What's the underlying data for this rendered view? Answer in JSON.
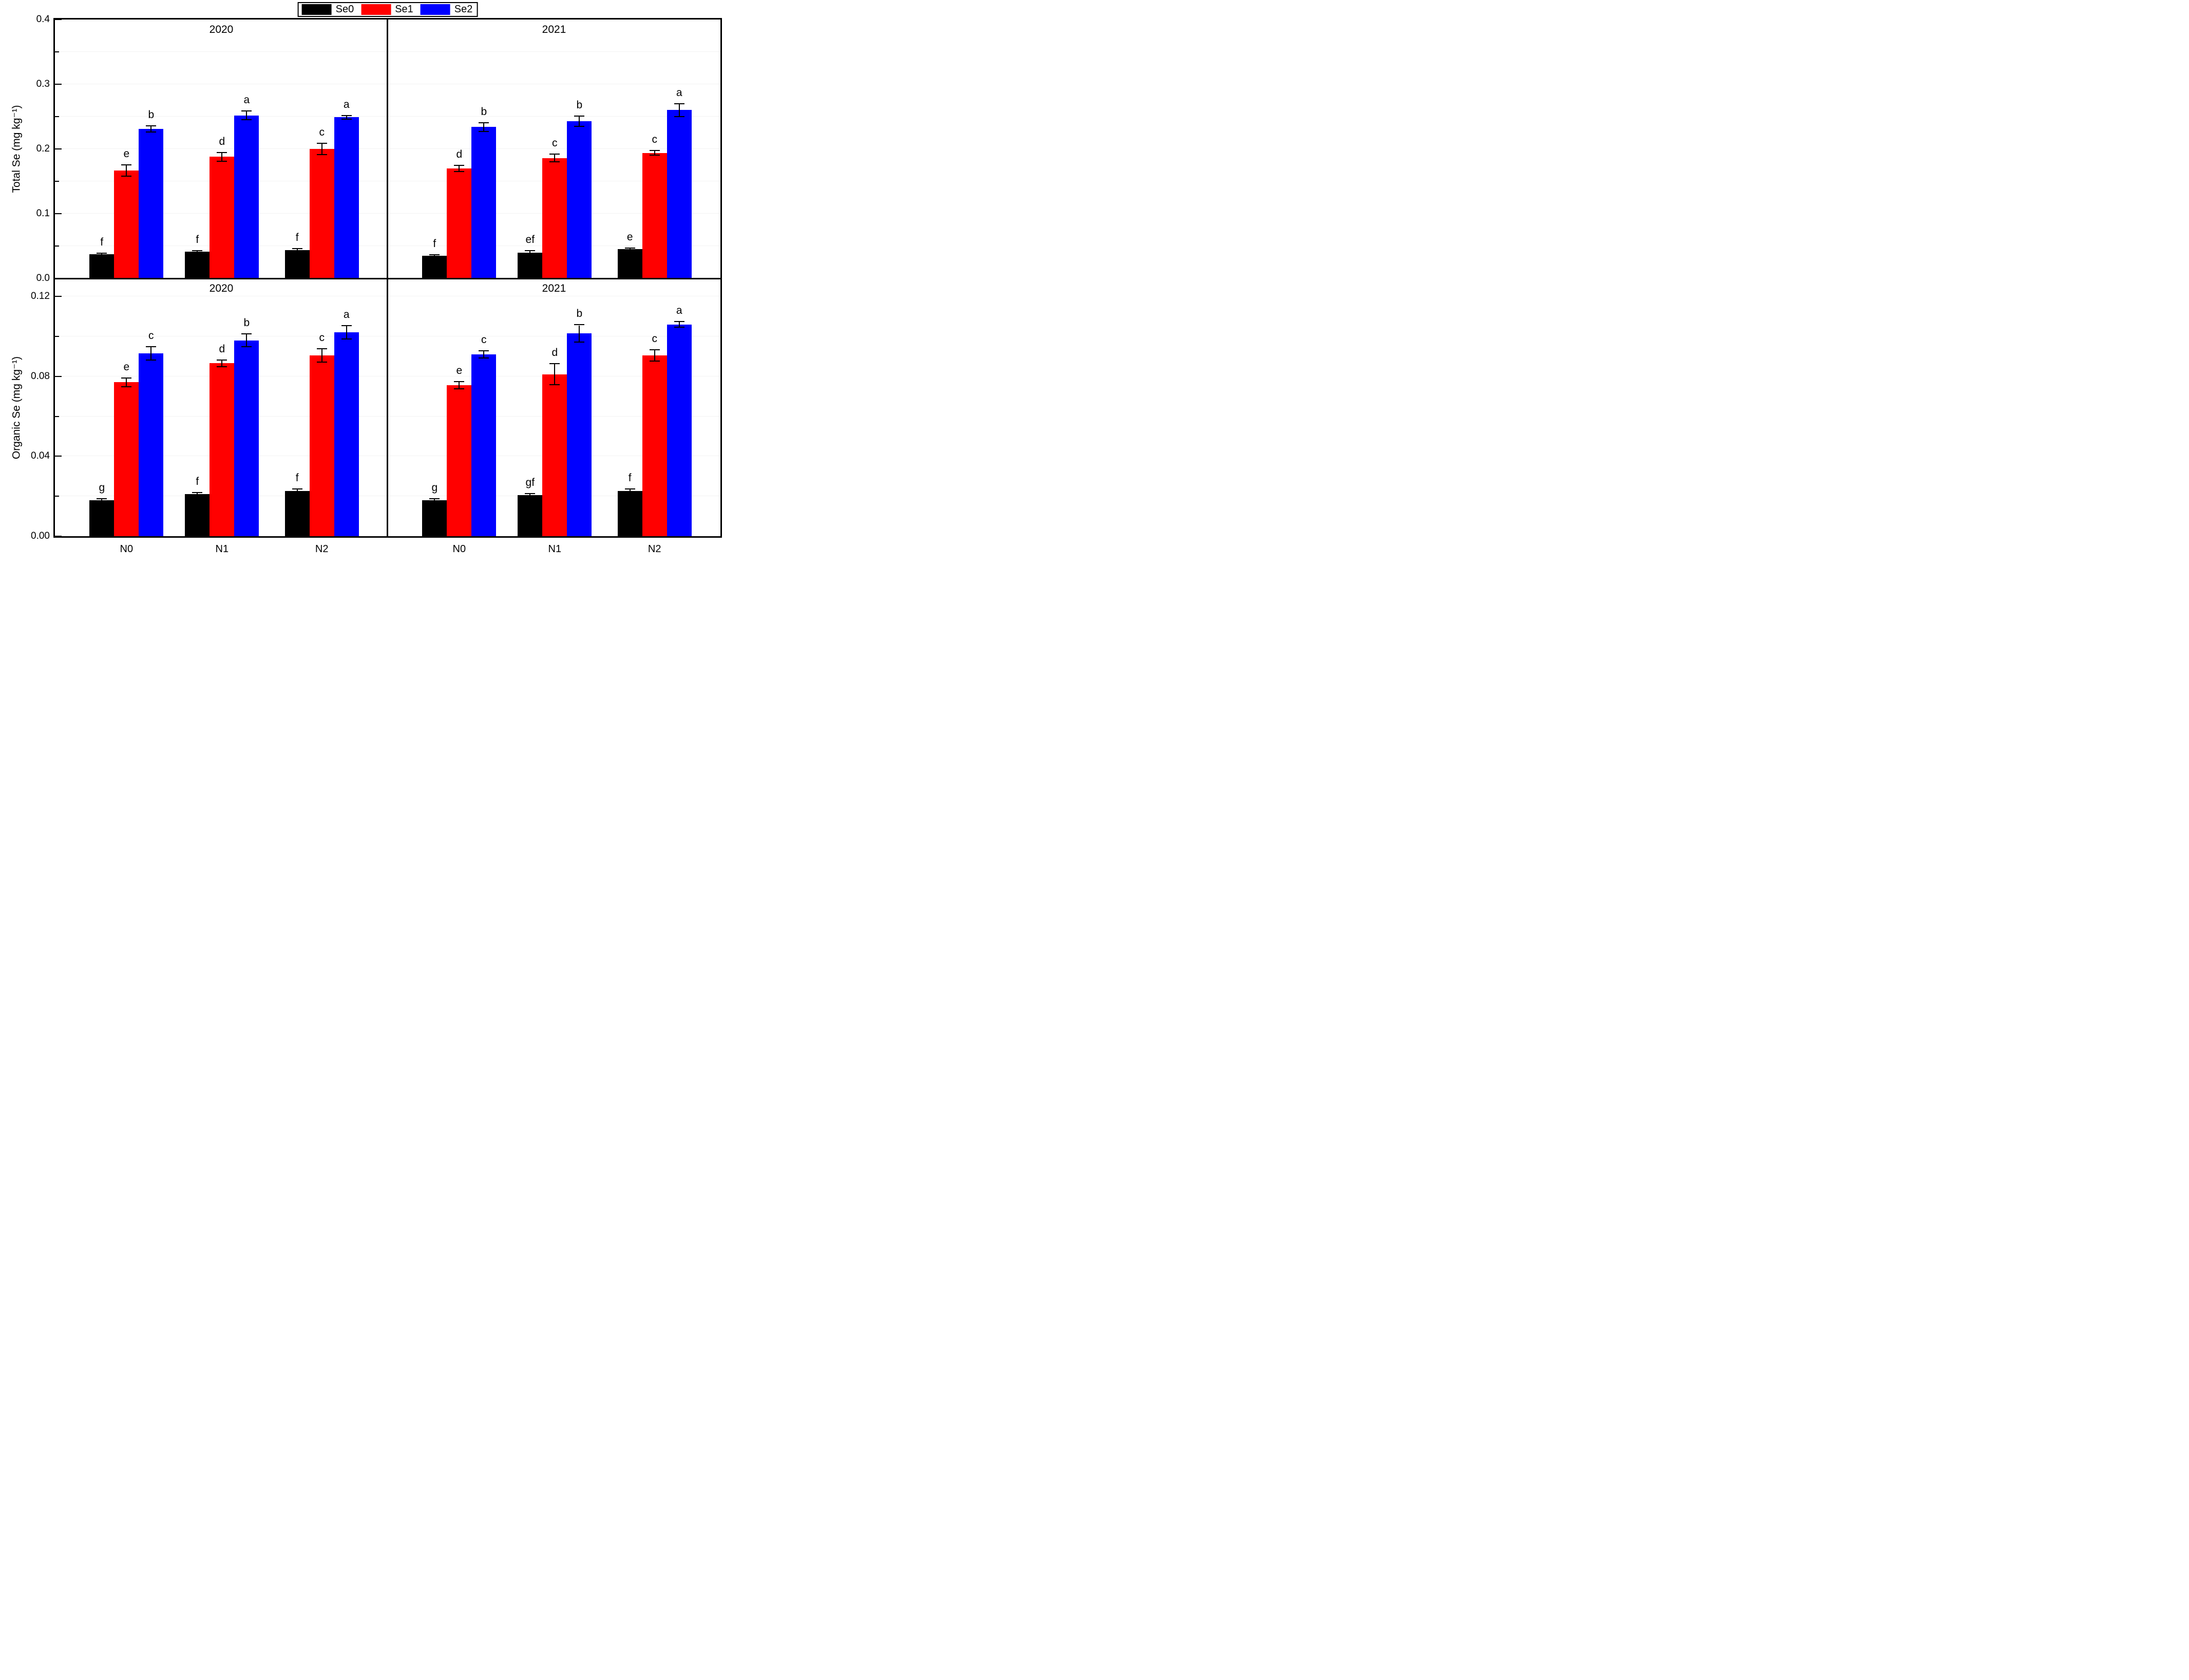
{
  "page": {
    "background": "#ffffff"
  },
  "legend": {
    "position": "top-center",
    "border_color": "#000000",
    "items": [
      {
        "label": "Se0",
        "color": "#000000"
      },
      {
        "label": "Se1",
        "color": "#ff0000"
      },
      {
        "label": "Se2",
        "color": "#0000ff"
      }
    ]
  },
  "axes": {
    "top_ylabel": "Total Se (mg kg⁻¹)",
    "bottom_ylabel": "Organic Se (mg kg⁻¹)",
    "categories": [
      "N0",
      "N1",
      "N2"
    ]
  },
  "chart_data": [
    {
      "id": "total-se-2020",
      "type": "bar",
      "row": 0,
      "col": 0,
      "title": "2020",
      "ylabel": "Total Se (mg kg⁻¹)",
      "ylim": [
        0,
        0.4
      ],
      "yminor_step": 0.05,
      "grid": "faint-horizontal",
      "legend_position": "top-center-outside",
      "yticks": [
        {
          "v": 0.0,
          "label": "0.0"
        },
        {
          "v": 0.1,
          "label": "0.1"
        },
        {
          "v": 0.2,
          "label": "0.2"
        },
        {
          "v": 0.3,
          "label": "0.3"
        },
        {
          "v": 0.4,
          "label": "0.4"
        }
      ],
      "categories": [
        "N0",
        "N1",
        "N2"
      ],
      "series": [
        {
          "name": "Se0",
          "color": "#000000",
          "values": [
            0.037,
            0.041,
            0.044
          ],
          "errors": [
            0.001,
            0.001,
            0.001
          ],
          "letters": [
            "f",
            "f",
            "f"
          ]
        },
        {
          "name": "Se1",
          "color": "#ff0000",
          "values": [
            0.167,
            0.188,
            0.2
          ],
          "errors": [
            0.008,
            0.006,
            0.008
          ],
          "letters": [
            "e",
            "d",
            "c"
          ]
        },
        {
          "name": "Se2",
          "color": "#0000ff",
          "values": [
            0.231,
            0.252,
            0.249
          ],
          "errors": [
            0.004,
            0.006,
            0.002
          ],
          "letters": [
            "b",
            "a",
            "a"
          ]
        }
      ]
    },
    {
      "id": "total-se-2021",
      "type": "bar",
      "row": 0,
      "col": 1,
      "title": "2021",
      "ylabel": "Total Se (mg kg⁻¹)",
      "ylim": [
        0,
        0.4
      ],
      "yminor_step": 0.05,
      "grid": "faint-horizontal",
      "yticks": [],
      "categories": [
        "N0",
        "N1",
        "N2"
      ],
      "series": [
        {
          "name": "Se0",
          "color": "#000000",
          "values": [
            0.035,
            0.04,
            0.045
          ],
          "errors": [
            0.001,
            0.002,
            0.001
          ],
          "letters": [
            "f",
            "ef",
            "e"
          ]
        },
        {
          "name": "Se1",
          "color": "#ff0000",
          "values": [
            0.17,
            0.186,
            0.194
          ],
          "errors": [
            0.004,
            0.005,
            0.003
          ],
          "letters": [
            "d",
            "c",
            "c"
          ]
        },
        {
          "name": "Se2",
          "color": "#0000ff",
          "values": [
            0.234,
            0.243,
            0.26
          ],
          "errors": [
            0.006,
            0.007,
            0.009
          ],
          "letters": [
            "b",
            "b",
            "a"
          ]
        }
      ]
    },
    {
      "id": "organic-se-2020",
      "type": "bar",
      "row": 1,
      "col": 0,
      "title": "2020",
      "ylabel": "Organic Se (mg kg⁻¹)",
      "ylim": [
        0,
        0.129
      ],
      "yminor_step": 0.02,
      "grid": "faint-horizontal",
      "yticks": [
        {
          "v": 0.0,
          "label": "0.00"
        },
        {
          "v": 0.04,
          "label": "0.04"
        },
        {
          "v": 0.08,
          "label": "0.08"
        },
        {
          "v": 0.12,
          "label": "0.12"
        }
      ],
      "categories": [
        "N0",
        "N1",
        "N2"
      ],
      "series": [
        {
          "name": "Se0",
          "color": "#000000",
          "values": [
            0.018,
            0.021,
            0.0225
          ],
          "errors": [
            0.0005,
            0.0005,
            0.0008
          ],
          "letters": [
            "g",
            "f",
            "f"
          ]
        },
        {
          "name": "Se1",
          "color": "#ff0000",
          "values": [
            0.077,
            0.0865,
            0.0905
          ],
          "errors": [
            0.002,
            0.0015,
            0.003
          ],
          "letters": [
            "e",
            "d",
            "c"
          ]
        },
        {
          "name": "Se2",
          "color": "#0000ff",
          "values": [
            0.0915,
            0.098,
            0.102
          ],
          "errors": [
            0.003,
            0.003,
            0.003
          ],
          "letters": [
            "c",
            "b",
            "a"
          ]
        }
      ]
    },
    {
      "id": "organic-se-2021",
      "type": "bar",
      "row": 1,
      "col": 1,
      "title": "2021",
      "ylabel": "Organic Se (mg kg⁻¹)",
      "ylim": [
        0,
        0.129
      ],
      "yminor_step": 0.02,
      "grid": "faint-horizontal",
      "yticks": [],
      "categories": [
        "N0",
        "N1",
        "N2"
      ],
      "series": [
        {
          "name": "Se0",
          "color": "#000000",
          "values": [
            0.018,
            0.0205,
            0.0225
          ],
          "errors": [
            0.0006,
            0.0005,
            0.0008
          ],
          "letters": [
            "g",
            "gf",
            "f"
          ]
        },
        {
          "name": "Se1",
          "color": "#ff0000",
          "values": [
            0.0755,
            0.081,
            0.0905
          ],
          "errors": [
            0.0015,
            0.005,
            0.0025
          ],
          "letters": [
            "e",
            "d",
            "c"
          ]
        },
        {
          "name": "Se2",
          "color": "#0000ff",
          "values": [
            0.091,
            0.1015,
            0.106
          ],
          "errors": [
            0.0015,
            0.004,
            0.0012
          ],
          "letters": [
            "c",
            "b",
            "a"
          ]
        }
      ]
    }
  ]
}
